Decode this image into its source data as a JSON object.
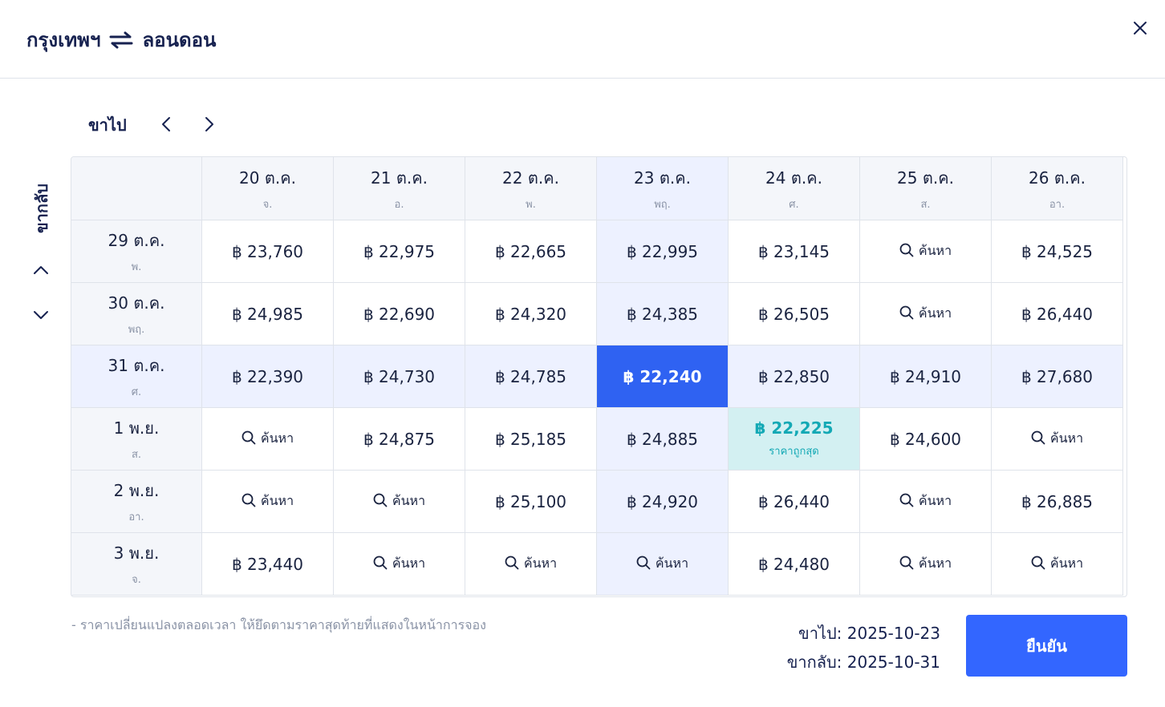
{
  "header": {
    "origin": "กรุงเทพฯ",
    "destination": "ลอนดอน"
  },
  "labels": {
    "outbound": "ขาไป",
    "return": "ขากลับ",
    "search": "ค้นหา",
    "cheapest": "ราคาถูกสุด"
  },
  "columns": [
    {
      "date": "20 ต.ค.",
      "day": "จ."
    },
    {
      "date": "21 ต.ค.",
      "day": "อ."
    },
    {
      "date": "22 ต.ค.",
      "day": "พ."
    },
    {
      "date": "23 ต.ค.",
      "day": "พฤ."
    },
    {
      "date": "24 ต.ค.",
      "day": "ศ."
    },
    {
      "date": "25 ต.ค.",
      "day": "ส."
    },
    {
      "date": "26 ต.ค.",
      "day": "อา."
    }
  ],
  "rows": [
    {
      "date": "29 ต.ค.",
      "day": "พ.",
      "prices": [
        "฿ 23,760",
        "฿ 22,975",
        "฿ 22,665",
        "฿ 22,995",
        "฿ 23,145",
        null,
        "฿ 24,525"
      ]
    },
    {
      "date": "30 ต.ค.",
      "day": "พฤ.",
      "prices": [
        "฿ 24,985",
        "฿ 22,690",
        "฿ 24,320",
        "฿ 24,385",
        "฿ 26,505",
        null,
        "฿ 26,440"
      ]
    },
    {
      "date": "31 ต.ค.",
      "day": "ศ.",
      "prices": [
        "฿ 22,390",
        "฿ 24,730",
        "฿ 24,785",
        "฿ 22,240",
        "฿ 22,850",
        "฿ 24,910",
        "฿ 27,680"
      ]
    },
    {
      "date": "1 พ.ย.",
      "day": "ส.",
      "prices": [
        null,
        "฿ 24,875",
        "฿ 25,185",
        "฿ 24,885",
        "฿ 22,225",
        "฿ 24,600",
        null
      ]
    },
    {
      "date": "2 พ.ย.",
      "day": "อา.",
      "prices": [
        null,
        null,
        "฿ 25,100",
        "฿ 24,920",
        "฿ 26,440",
        null,
        "฿ 26,885"
      ]
    },
    {
      "date": "3 พ.ย.",
      "day": "จ.",
      "prices": [
        "฿ 23,440",
        null,
        null,
        null,
        "฿ 24,480",
        null,
        null
      ]
    }
  ],
  "selection": {
    "column": 3,
    "row": 2
  },
  "cheapest": {
    "column": 4,
    "row": 3
  },
  "footer": {
    "note": "- ราคาเปลี่ยนแปลงตลอดเวลา ให้ยึดตามราคาสุดท้ายที่แสดงในหน้าการจอง",
    "outbound_summary": "ขาไป: 2025-10-23",
    "return_summary": "ขากลับ: 2025-10-31",
    "confirm_label": "ยืนยัน"
  },
  "colors": {
    "selected": "#2f62f2",
    "highlight": "#edf1ff",
    "cheapest_bg": "#d3f0f2",
    "cheapest_text": "#14a9b5",
    "primary": "#3366ff"
  },
  "icons": {
    "swap": "swap-arrows-icon",
    "close": "close-icon",
    "prev": "chevron-left-icon",
    "next": "chevron-right-icon",
    "up": "chevron-up-icon",
    "down": "chevron-down-icon",
    "search": "search-icon"
  }
}
